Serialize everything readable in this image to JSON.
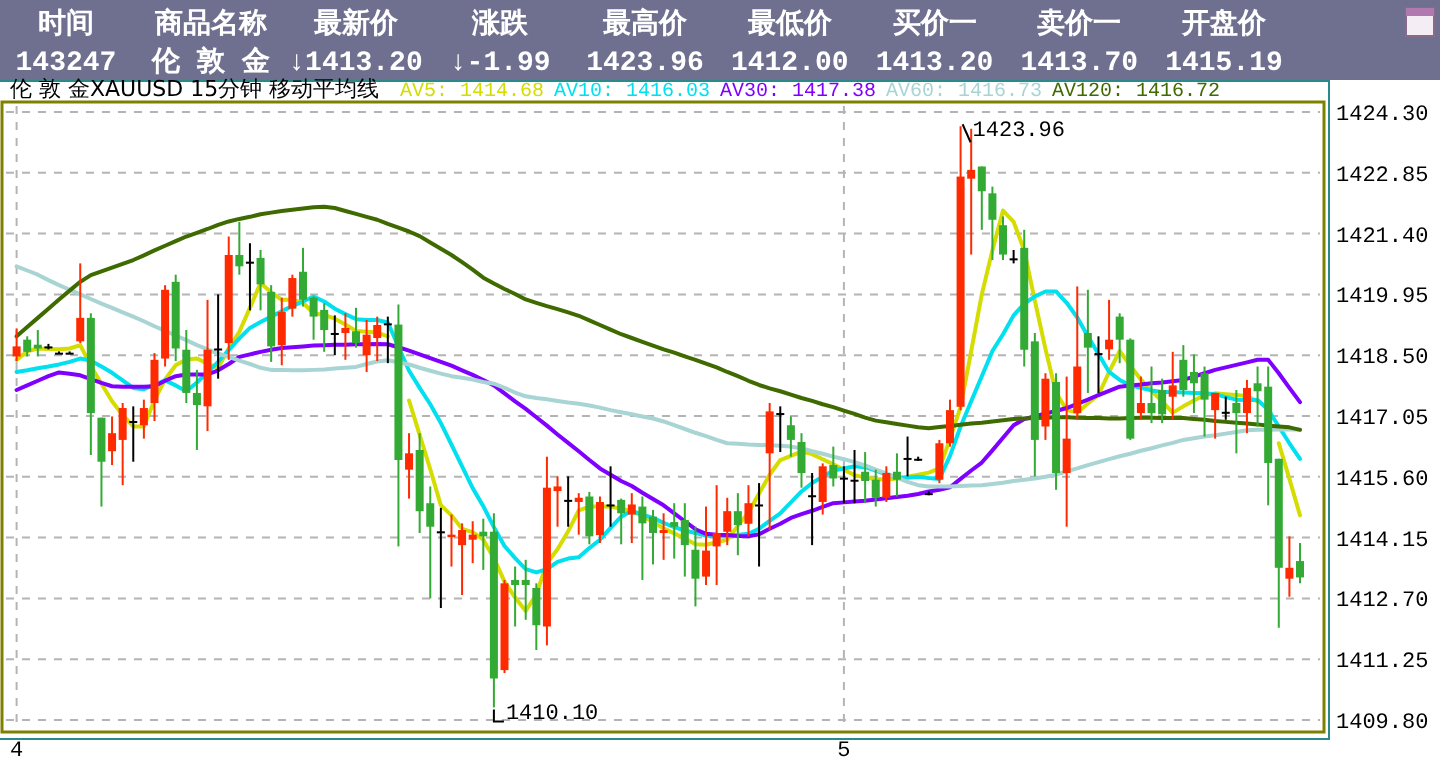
{
  "chart_data": [
    {
      "type": "other",
      "categories": [
        "时间",
        "商品名称",
        "最新价",
        "涨跌",
        "最高价",
        "最低价",
        "买价一",
        "卖价一",
        "开盘价"
      ],
      "value_labels": [
        "143247",
        "伦 敦 金",
        "↓1413.20",
        "↓-1.99",
        "1423.96",
        "1412.00",
        "1413.20",
        "1413.70",
        "1415.19"
      ]
    },
    {
      "type": "candlestick",
      "title": "伦 敦 金XAUUSD 15分钟 移动平均线",
      "categories": [
        "4",
        null,
        null,
        null,
        null,
        null,
        null,
        null,
        null,
        null,
        null,
        null,
        null,
        null,
        null,
        null,
        null,
        null,
        null,
        null,
        null,
        null,
        null,
        null,
        null,
        null,
        null,
        null,
        null,
        null,
        null,
        null,
        null,
        null,
        null,
        null,
        null,
        null,
        null,
        null,
        null,
        null,
        null,
        null,
        null,
        null,
        null,
        null,
        null,
        null,
        null,
        null,
        null,
        null,
        null,
        null,
        null,
        null,
        null,
        null,
        null,
        null,
        null,
        null,
        null,
        null,
        null,
        null,
        null,
        null,
        null,
        null,
        null,
        null,
        null,
        null,
        null,
        null,
        "5",
        null,
        null,
        null,
        null,
        null,
        null,
        null,
        null,
        null,
        null,
        null,
        null,
        null,
        null,
        null,
        null,
        null,
        null,
        null,
        null,
        null,
        null,
        null,
        null,
        null,
        null,
        null,
        null,
        null,
        null,
        null,
        null,
        null,
        null,
        null,
        null,
        null,
        null,
        null,
        null,
        null,
        null,
        null
      ],
      "ohlc": [
        [
          1418.47,
          1419.14,
          1418.36,
          1418.71
        ],
        [
          1418.87,
          1418.95,
          1418.47,
          1418.58
        ],
        [
          1418.75,
          1419.1,
          1418.47,
          1418.66
        ],
        [
          1418.71,
          1418.77,
          1418.64,
          1418.71
        ],
        [
          1418.56,
          1418.59,
          1418.53,
          1418.56
        ],
        [
          1418.56,
          1418.59,
          1418.53,
          1418.56
        ],
        [
          1418.83,
          1420.69,
          1418.79,
          1419.39
        ],
        [
          1419.39,
          1419.5,
          1416.12,
          1417.12
        ],
        [
          1417.01,
          1417.01,
          1414.89,
          1415.96
        ],
        [
          1416.21,
          1417.04,
          1415.88,
          1416.64
        ],
        [
          1416.48,
          1417.36,
          1415.4,
          1417.24
        ],
        [
          1416.93,
          1417.28,
          1415.96,
          1416.93
        ],
        [
          1416.83,
          1417.44,
          1416.51,
          1417.24
        ],
        [
          1417.36,
          1418.55,
          1416.93,
          1418.39
        ],
        [
          1418.42,
          1420.17,
          1418.23,
          1420.06
        ],
        [
          1420.25,
          1420.42,
          1418.36,
          1418.66
        ],
        [
          1418.63,
          1419.1,
          1417.36,
          1417.6
        ],
        [
          1417.6,
          1418.15,
          1416.24,
          1417.31
        ],
        [
          1417.28,
          1419.82,
          1416.69,
          1418.63
        ],
        [
          1418.66,
          1419.95,
          1417.94,
          1418.66
        ],
        [
          1418.79,
          1421.33,
          1418.39,
          1420.89
        ],
        [
          1420.89,
          1421.68,
          1420.42,
          1420.62
        ],
        [
          1420.73,
          1421.17,
          1419.57,
          1420.73
        ],
        [
          1420.82,
          1421.01,
          1419.57,
          1420.19
        ],
        [
          1420.01,
          1420.17,
          1418.34,
          1418.71
        ],
        [
          1418.74,
          1419.87,
          1418.26,
          1419.53
        ],
        [
          1419.61,
          1420.42,
          1419.42,
          1420.34
        ],
        [
          1420.49,
          1421.06,
          1419.66,
          1419.82
        ],
        [
          1419.87,
          1419.9,
          1418.87,
          1419.42
        ],
        [
          1419.58,
          1419.74,
          1418.58,
          1419.1
        ],
        [
          1419.03,
          1419.45,
          1418.5,
          1419.03
        ],
        [
          1419.03,
          1419.5,
          1418.39,
          1419.15
        ],
        [
          1419.07,
          1419.63,
          1418.68,
          1418.79
        ],
        [
          1418.5,
          1419.34,
          1418.1,
          1418.99
        ],
        [
          1418.91,
          1419.42,
          1418.36,
          1419.22
        ],
        [
          1419.26,
          1419.42,
          1418.31,
          1419.26
        ],
        [
          1419.23,
          1419.71,
          1413.94,
          1416.0
        ],
        [
          1415.77,
          1416.64,
          1415.08,
          1416.16
        ],
        [
          1416.24,
          1416.64,
          1414.26,
          1414.78
        ],
        [
          1414.97,
          1415.37,
          1412.7,
          1414.41
        ],
        [
          1414.3,
          1414.86,
          1412.47,
          1414.3
        ],
        [
          1414.16,
          1414.7,
          1413.46,
          1414.22
        ],
        [
          1413.97,
          1414.49,
          1412.78,
          1414.33
        ],
        [
          1414.1,
          1414.54,
          1413.54,
          1414.22
        ],
        [
          1414.29,
          1414.6,
          1413.38,
          1414.18
        ],
        [
          1414.29,
          1414.73,
          1410.1,
          1410.79
        ],
        [
          1410.99,
          1413.14,
          1410.92,
          1413.06
        ],
        [
          1413.14,
          1413.46,
          1412.03,
          1413.02
        ],
        [
          1413.14,
          1413.62,
          1412.19,
          1413.02
        ],
        [
          1412.95,
          1413.06,
          1411.47,
          1412.06
        ],
        [
          1412.03,
          1416.08,
          1411.58,
          1415.34
        ],
        [
          1415.26,
          1415.61,
          1414.41,
          1415.37
        ],
        [
          1415.05,
          1415.61,
          1414.41,
          1415.05
        ],
        [
          1415.0,
          1415.21,
          1414.22,
          1415.1
        ],
        [
          1415.13,
          1415.24,
          1413.99,
          1414.18
        ],
        [
          1414.21,
          1415.13,
          1414.02,
          1415.0
        ],
        [
          1414.94,
          1415.85,
          1414.41,
          1414.94
        ],
        [
          1415.05,
          1415.08,
          1413.99,
          1414.73
        ],
        [
          1414.7,
          1415.21,
          1414.02,
          1414.94
        ],
        [
          1414.89,
          1415.13,
          1413.14,
          1414.49
        ],
        [
          1414.65,
          1414.81,
          1413.51,
          1414.26
        ],
        [
          1414.26,
          1414.73,
          1413.62,
          1414.33
        ],
        [
          1414.52,
          1414.97,
          1413.65,
          1414.41
        ],
        [
          1414.57,
          1414.97,
          1413.22,
          1413.97
        ],
        [
          1413.86,
          1414.41,
          1412.51,
          1413.17
        ],
        [
          1413.22,
          1414.89,
          1413.02,
          1413.84
        ],
        [
          1413.94,
          1415.4,
          1413.02,
          1414.26
        ],
        [
          1414.29,
          1415.1,
          1413.97,
          1414.78
        ],
        [
          1414.78,
          1415.21,
          1413.73,
          1414.45
        ],
        [
          1414.48,
          1415.4,
          1414.18,
          1414.97
        ],
        [
          1414.94,
          1415.45,
          1413.46,
          1414.94
        ],
        [
          1416.16,
          1417.36,
          1414.33,
          1417.16
        ],
        [
          1417.12,
          1417.28,
          1416.19,
          1417.12
        ],
        [
          1416.83,
          1417.04,
          1416.08,
          1416.48
        ],
        [
          1416.43,
          1416.64,
          1415.34,
          1415.69
        ],
        [
          1415.16,
          1415.69,
          1413.97,
          1415.16
        ],
        [
          1415.0,
          1415.92,
          1414.7,
          1415.85
        ],
        [
          1415.88,
          1416.32,
          1415.37,
          1415.56
        ],
        [
          1415.58,
          1415.85,
          1414.97,
          1415.58
        ],
        [
          1415.53,
          1416.24,
          1414.97,
          1415.53
        ],
        [
          1415.72,
          1416.19,
          1414.97,
          1415.5
        ],
        [
          1415.53,
          1415.77,
          1414.89,
          1415.1
        ],
        [
          1415.1,
          1415.85,
          1415.0,
          1415.69
        ],
        [
          1415.72,
          1416.16,
          1415.13,
          1415.53
        ],
        [
          1416.05,
          1416.56,
          1415.61,
          1416.05
        ],
        [
          1416.03,
          1416.08,
          1415.98,
          1416.03
        ],
        [
          1415.21,
          1415.26,
          1415.16,
          1415.21
        ],
        [
          1415.53,
          1416.48,
          1415.45,
          1416.4
        ],
        [
          1416.4,
          1417.44,
          1416.32,
          1417.19
        ],
        [
          1417.27,
          1423.96,
          1417.19,
          1422.76
        ],
        [
          1422.71,
          1423.9,
          1420.9,
          1422.92
        ],
        [
          1423.0,
          1423.0,
          1421.49,
          1422.41
        ],
        [
          1422.36,
          1422.52,
          1420.77,
          1421.73
        ],
        [
          1421.6,
          1421.81,
          1420.77,
          1420.9
        ],
        [
          1420.81,
          1421.01,
          1420.69,
          1420.81
        ],
        [
          1421.06,
          1421.49,
          1418.23,
          1418.63
        ],
        [
          1418.83,
          1419.03,
          1415.61,
          1416.48
        ],
        [
          1416.8,
          1418.07,
          1416.48,
          1417.94
        ],
        [
          1417.86,
          1418.07,
          1415.29,
          1415.69
        ],
        [
          1415.69,
          1417.99,
          1414.41,
          1416.51
        ],
        [
          1417.12,
          1420.14,
          1416.96,
          1418.23
        ],
        [
          1419.03,
          1420.06,
          1417.6,
          1418.68
        ],
        [
          1418.55,
          1418.95,
          1417.6,
          1418.55
        ],
        [
          1418.64,
          1419.82,
          1418.39,
          1418.87
        ],
        [
          1419.42,
          1419.5,
          1418.31,
          1418.87
        ],
        [
          1418.87,
          1418.9,
          1416.48,
          1416.51
        ],
        [
          1417.12,
          1417.99,
          1416.96,
          1417.36
        ],
        [
          1417.36,
          1418.23,
          1416.88,
          1417.12
        ],
        [
          1417.67,
          1417.94,
          1416.88,
          1417.09
        ],
        [
          1417.51,
          1418.58,
          1416.96,
          1417.78
        ],
        [
          1418.39,
          1418.74,
          1417.51,
          1417.67
        ],
        [
          1418.1,
          1418.52,
          1417.12,
          1417.83
        ],
        [
          1418.07,
          1418.23,
          1416.56,
          1417.44
        ],
        [
          1417.19,
          1417.6,
          1416.51,
          1417.6
        ],
        [
          1417.15,
          1417.51,
          1416.96,
          1417.15
        ],
        [
          1417.36,
          1417.67,
          1416.16,
          1417.12
        ],
        [
          1417.12,
          1417.91,
          1416.64,
          1417.72
        ],
        [
          1417.83,
          1418.23,
          1416.8,
          1417.64
        ],
        [
          1417.75,
          1418.23,
          1414.92,
          1415.93
        ],
        [
          1416.03,
          1416.03,
          1412.0,
          1413.43
        ],
        [
          1413.17,
          1414.18,
          1412.74,
          1413.43
        ],
        [
          1413.59,
          1414.02,
          1413.06,
          1413.2
        ]
      ],
      "series": [
        {
          "type": "line",
          "name": "AV5: 1414.68",
          "color": "#d4dc00",
          "values": [
            1418.39,
            1418.59,
            1418.66,
            1418.65,
            1418.64,
            1418.66,
            1418.74,
            1418.24,
            1417.82,
            1417.4,
            1417.07,
            1416.8,
            1416.8,
            1417.43,
            1417.92,
            1418.26,
            1418.4,
            1418.42,
            1418.3,
            1418.2,
            1418.66,
            1419.06,
            1419.63,
            1420.22,
            1420.0,
            1419.82,
            1419.82,
            1419.75,
            1419.5,
            1419.46,
            1419.37,
            1419.23,
            1419.08,
            1419.06,
            1419.04,
            1418.95,
            null,
            1417.42,
            1416.6,
            1415.78,
            1414.92,
            1414.68,
            1414.36,
            1414.28,
            1414.1,
            1413.66,
            1413.1,
            1412.72,
            1412.4,
            1412.8,
            1413.54,
            1413.87,
            1414.3,
            1414.8,
            1414.89,
            1414.89,
            1414.89,
            1414.84,
            1414.78,
            1414.67,
            1414.52,
            1414.37,
            1414.25,
            1414.13,
            1413.99,
            1413.98,
            1414.04,
            1414.1,
            1414.43,
            1414.75,
            1415.2,
            1415.65,
            1416.0,
            1416.1,
            1416.2,
            1416.14,
            1416.02,
            1415.9,
            1415.77,
            1415.64,
            1415.58,
            1415.55,
            1415.53,
            1415.56,
            1415.6,
            1415.65,
            1415.7,
            1415.8,
            1416.5,
            1417.27,
            1418.6,
            1419.95,
            1421.0,
            1421.95,
            1421.68,
            1421.0,
            1419.8,
            1418.65,
            1417.6,
            1417.2,
            1417.13,
            1417.35,
            1417.55,
            1418.1,
            1418.6,
            1418.25,
            1417.92,
            1417.65,
            1417.4,
            1417.13,
            1417.28,
            1417.42,
            1417.55,
            1417.59,
            1417.57,
            1417.55,
            1417.52,
            1417.4,
            null,
            1416.4,
            1415.55,
            1414.68
          ]
        },
        {
          "type": "line",
          "name": "AV10: 1416.03",
          "color": "#00e0ee",
          "values": [
            1418.1,
            1418.14,
            1418.19,
            1418.23,
            1418.28,
            1418.34,
            1418.42,
            1418.37,
            1418.23,
            1418.08,
            1417.9,
            1417.72,
            1417.69,
            1417.8,
            1417.9,
            1417.78,
            1417.64,
            1417.85,
            1418.09,
            1418.34,
            1418.62,
            1418.9,
            1419.15,
            1419.29,
            1419.42,
            1419.55,
            1419.67,
            1419.78,
            1419.9,
            1419.78,
            1419.61,
            1419.48,
            1419.36,
            1419.34,
            1419.34,
            1419.28,
            1418.7,
            1418.13,
            1417.72,
            1417.33,
            1416.88,
            1416.37,
            1415.85,
            1415.33,
            1414.9,
            1414.4,
            1413.95,
            1413.66,
            1413.4,
            1413.32,
            1413.4,
            1413.57,
            1413.65,
            1413.68,
            1413.9,
            1414.1,
            1414.38,
            1414.65,
            1414.79,
            1414.7,
            1414.62,
            1414.5,
            1414.4,
            1414.32,
            1414.26,
            1414.2,
            1414.17,
            1414.19,
            1414.21,
            1414.24,
            1414.36,
            1414.55,
            1414.73,
            1414.99,
            1415.25,
            1415.45,
            1415.6,
            1415.75,
            1415.8,
            1415.85,
            1415.83,
            1415.75,
            1415.66,
            1415.58,
            1415.58,
            1415.6,
            1415.57,
            1415.55,
            1416.1,
            1416.8,
            1417.4,
            1418.0,
            1418.6,
            1419.0,
            1419.45,
            1419.73,
            1419.9,
            1420.02,
            1420.02,
            1419.75,
            1419.4,
            1418.95,
            1418.53,
            1418.1,
            1417.91,
            1417.78,
            1417.72,
            1417.66,
            1417.62,
            1417.62,
            1417.61,
            1417.6,
            1417.59,
            1417.57,
            1417.5,
            1417.44,
            1417.43,
            1417.43,
            1417.2,
            1416.8,
            1416.4,
            1416.03
          ]
        },
        {
          "type": "line",
          "name": "AV30: 1417.38",
          "color": "#8000ff",
          "values": [
            1417.67,
            1417.78,
            1417.89,
            1418.0,
            1418.09,
            1418.06,
            1418.02,
            1417.93,
            1417.84,
            1417.76,
            1417.75,
            1417.75,
            1417.75,
            1417.76,
            1417.89,
            1418.0,
            1418.04,
            1418.04,
            1418.04,
            1418.14,
            1418.29,
            1418.46,
            1418.52,
            1418.58,
            1418.63,
            1418.67,
            1418.69,
            1418.71,
            1418.73,
            1418.74,
            1418.75,
            1418.75,
            1418.76,
            1418.76,
            1418.77,
            1418.76,
            1418.69,
            1418.61,
            1418.52,
            1418.43,
            1418.34,
            1418.25,
            1418.14,
            1418.03,
            1417.91,
            1417.78,
            1417.59,
            1417.4,
            1417.22,
            1417.02,
            1416.82,
            1416.61,
            1416.41,
            1416.21,
            1416.0,
            1415.8,
            1415.65,
            1415.5,
            1415.38,
            1415.22,
            1415.07,
            1414.92,
            1414.73,
            1414.54,
            1414.35,
            1414.24,
            1414.22,
            1414.21,
            1414.19,
            1414.18,
            1414.23,
            1414.36,
            1414.48,
            1414.62,
            1414.71,
            1414.79,
            1414.88,
            1414.97,
            1414.99,
            1415.01,
            1415.03,
            1415.06,
            1415.09,
            1415.12,
            1415.15,
            1415.19,
            1415.25,
            1415.29,
            1415.35,
            1415.55,
            1415.75,
            1415.94,
            1416.23,
            1416.53,
            1416.83,
            1416.98,
            1417.04,
            1417.11,
            1417.17,
            1417.24,
            1417.34,
            1417.44,
            1417.55,
            1417.65,
            1417.75,
            1417.78,
            1417.8,
            1417.83,
            1417.85,
            1417.88,
            1417.91,
            1417.99,
            1418.07,
            1418.15,
            1418.21,
            1418.27,
            1418.33,
            1418.39,
            1418.39,
            1418.07,
            1417.72,
            1417.38
          ]
        },
        {
          "type": "line",
          "name": "AV60: 1416.73",
          "color": "#a8d4d4",
          "values": [
            1420.62,
            1420.52,
            1420.42,
            1420.29,
            1420.17,
            1420.06,
            1419.95,
            1419.84,
            1419.73,
            1419.63,
            1419.52,
            1419.42,
            1419.31,
            1419.19,
            1419.08,
            1418.97,
            1418.86,
            1418.74,
            1418.64,
            1418.54,
            1418.46,
            1418.37,
            1418.29,
            1418.2,
            1418.15,
            1418.15,
            1418.14,
            1418.14,
            1418.15,
            1418.16,
            1418.18,
            1418.2,
            1418.22,
            1418.29,
            1418.35,
            1418.38,
            1418.33,
            1418.28,
            1418.2,
            1418.13,
            1418.06,
            1418.0,
            1417.96,
            1417.92,
            1417.86,
            1417.82,
            1417.72,
            1417.61,
            1417.52,
            1417.48,
            1417.45,
            1417.41,
            1417.37,
            1417.34,
            1417.3,
            1417.25,
            1417.19,
            1417.14,
            1417.09,
            1417.04,
            1416.99,
            1416.92,
            1416.83,
            1416.74,
            1416.65,
            1416.57,
            1416.48,
            1416.4,
            1416.39,
            1416.37,
            1416.36,
            1416.35,
            1416.34,
            1416.32,
            1416.28,
            1416.21,
            1416.15,
            1416.08,
            1416.02,
            1415.95,
            1415.87,
            1415.77,
            1415.68,
            1415.58,
            1415.48,
            1415.4,
            1415.37,
            1415.37,
            1415.37,
            1415.38,
            1415.39,
            1415.4,
            1415.43,
            1415.46,
            1415.5,
            1415.53,
            1415.56,
            1415.6,
            1415.65,
            1415.73,
            1415.8,
            1415.88,
            1415.95,
            1416.02,
            1416.09,
            1416.15,
            1416.22,
            1416.28,
            1416.35,
            1416.41,
            1416.48,
            1416.52,
            1416.56,
            1416.59,
            1416.63,
            1416.67,
            1416.71,
            1416.72,
            1416.72,
            1416.73,
            1416.73,
            1416.73
          ]
        },
        {
          "type": "line",
          "name": "AV120: 1416.72",
          "color": "#3f6a00",
          "values": [
            1418.95,
            1419.17,
            1419.39,
            1419.61,
            1419.83,
            1420.04,
            1420.25,
            1420.41,
            1420.5,
            1420.59,
            1420.68,
            1420.77,
            1420.88,
            1421.0,
            1421.11,
            1421.22,
            1421.33,
            1421.42,
            1421.51,
            1421.61,
            1421.69,
            1421.75,
            1421.8,
            1421.86,
            1421.9,
            1421.94,
            1421.97,
            1422.0,
            1422.03,
            1422.04,
            1422.01,
            1421.94,
            1421.87,
            1421.8,
            1421.73,
            1421.63,
            1421.54,
            1421.45,
            1421.34,
            1421.19,
            1421.04,
            1420.89,
            1420.72,
            1420.54,
            1420.35,
            1420.21,
            1420.08,
            1419.96,
            1419.83,
            1419.75,
            1419.67,
            1419.6,
            1419.52,
            1419.44,
            1419.33,
            1419.22,
            1419.11,
            1419.0,
            1418.91,
            1418.82,
            1418.73,
            1418.64,
            1418.56,
            1418.47,
            1418.39,
            1418.3,
            1418.21,
            1418.1,
            1418.0,
            1417.89,
            1417.79,
            1417.71,
            1417.64,
            1417.56,
            1417.48,
            1417.41,
            1417.33,
            1417.26,
            1417.18,
            1417.1,
            1417.01,
            1416.94,
            1416.9,
            1416.86,
            1416.82,
            1416.78,
            1416.76,
            1416.79,
            1416.81,
            1416.84,
            1416.87,
            1416.89,
            1416.92,
            1416.95,
            1416.98,
            1416.99,
            1417.0,
            1417.01,
            1417.02,
            1417.02,
            1417.01,
            1417.0,
            1417.0,
            1416.99,
            1416.99,
            1417.0,
            1417.01,
            1417.01,
            1417.0,
            1417.0,
            1417.0,
            1416.98,
            1416.96,
            1416.93,
            1416.91,
            1416.89,
            1416.87,
            1416.85,
            1416.82,
            1416.8,
            1416.78,
            1416.72
          ]
        }
      ],
      "ylim": [
        1409.8,
        1424.3
      ],
      "yticks": [
        {
          "value": 1409.8,
          "label": "1409.80"
        },
        {
          "value": 1411.25,
          "label": "1411.25"
        },
        {
          "value": 1412.7,
          "label": "1412.70"
        },
        {
          "value": 1414.15,
          "label": "1414.15"
        },
        {
          "value": 1415.6,
          "label": "1415.60"
        },
        {
          "value": 1417.05,
          "label": "1417.05"
        },
        {
          "value": 1418.5,
          "label": "1418.50"
        },
        {
          "value": 1419.95,
          "label": "1419.95"
        },
        {
          "value": 1421.4,
          "label": "1421.40"
        },
        {
          "value": 1422.85,
          "label": "1422.85"
        },
        {
          "value": 1424.3,
          "label": "1424.30"
        }
      ],
      "grid": true,
      "legend": "top",
      "annotations": [
        "1423.96",
        "1410.10"
      ]
    }
  ]
}
